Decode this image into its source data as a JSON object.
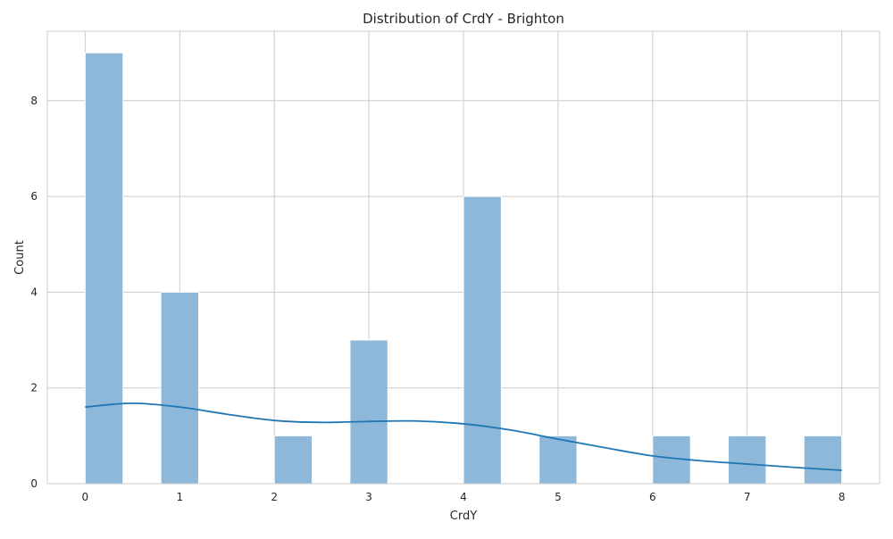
{
  "chart_data": {
    "type": "histogram",
    "title": "Distribution of CrdY - Brighton",
    "xlabel": "CrdY",
    "ylabel": "Count",
    "xlim": [
      -0.4,
      8.4
    ],
    "ylim": [
      0,
      9.45
    ],
    "xticks": [
      0,
      1,
      2,
      3,
      4,
      5,
      6,
      7,
      8
    ],
    "yticks": [
      0,
      2,
      4,
      6,
      8
    ],
    "grid": true,
    "bins": [
      {
        "x0": 0.0,
        "x1": 0.4,
        "count": 9
      },
      {
        "x0": 0.4,
        "x1": 0.8,
        "count": 0
      },
      {
        "x0": 0.8,
        "x1": 1.2,
        "count": 4
      },
      {
        "x0": 1.2,
        "x1": 1.6,
        "count": 0
      },
      {
        "x0": 1.6,
        "x1": 2.0,
        "count": 0
      },
      {
        "x0": 2.0,
        "x1": 2.4,
        "count": 1
      },
      {
        "x0": 2.4,
        "x1": 2.8,
        "count": 0
      },
      {
        "x0": 2.8,
        "x1": 3.2,
        "count": 3
      },
      {
        "x0": 3.2,
        "x1": 3.6,
        "count": 0
      },
      {
        "x0": 3.6,
        "x1": 4.0,
        "count": 0
      },
      {
        "x0": 4.0,
        "x1": 4.4,
        "count": 6
      },
      {
        "x0": 4.4,
        "x1": 4.8,
        "count": 0
      },
      {
        "x0": 4.8,
        "x1": 5.2,
        "count": 1
      },
      {
        "x0": 5.2,
        "x1": 5.6,
        "count": 0
      },
      {
        "x0": 5.6,
        "x1": 6.0,
        "count": 0
      },
      {
        "x0": 6.0,
        "x1": 6.4,
        "count": 1
      },
      {
        "x0": 6.4,
        "x1": 6.8,
        "count": 0
      },
      {
        "x0": 6.8,
        "x1": 7.2,
        "count": 1
      },
      {
        "x0": 7.2,
        "x1": 7.6,
        "count": 0
      },
      {
        "x0": 7.6,
        "x1": 8.0,
        "count": 1
      }
    ],
    "kde": {
      "x": [
        0,
        0.5,
        1,
        1.5,
        2,
        2.5,
        3,
        3.5,
        4,
        4.5,
        5,
        5.5,
        6,
        6.5,
        7,
        7.5,
        8
      ],
      "y": [
        1.6,
        1.68,
        1.6,
        1.45,
        1.32,
        1.28,
        1.3,
        1.31,
        1.25,
        1.12,
        0.93,
        0.75,
        0.58,
        0.48,
        0.41,
        0.34,
        0.28
      ]
    },
    "colors": {
      "bar_fill": "#8db8da",
      "bar_edge": "#ffffff",
      "kde_line": "#1f77b4",
      "grid": "#cccccc",
      "axes_edge": "#cccccc"
    }
  }
}
